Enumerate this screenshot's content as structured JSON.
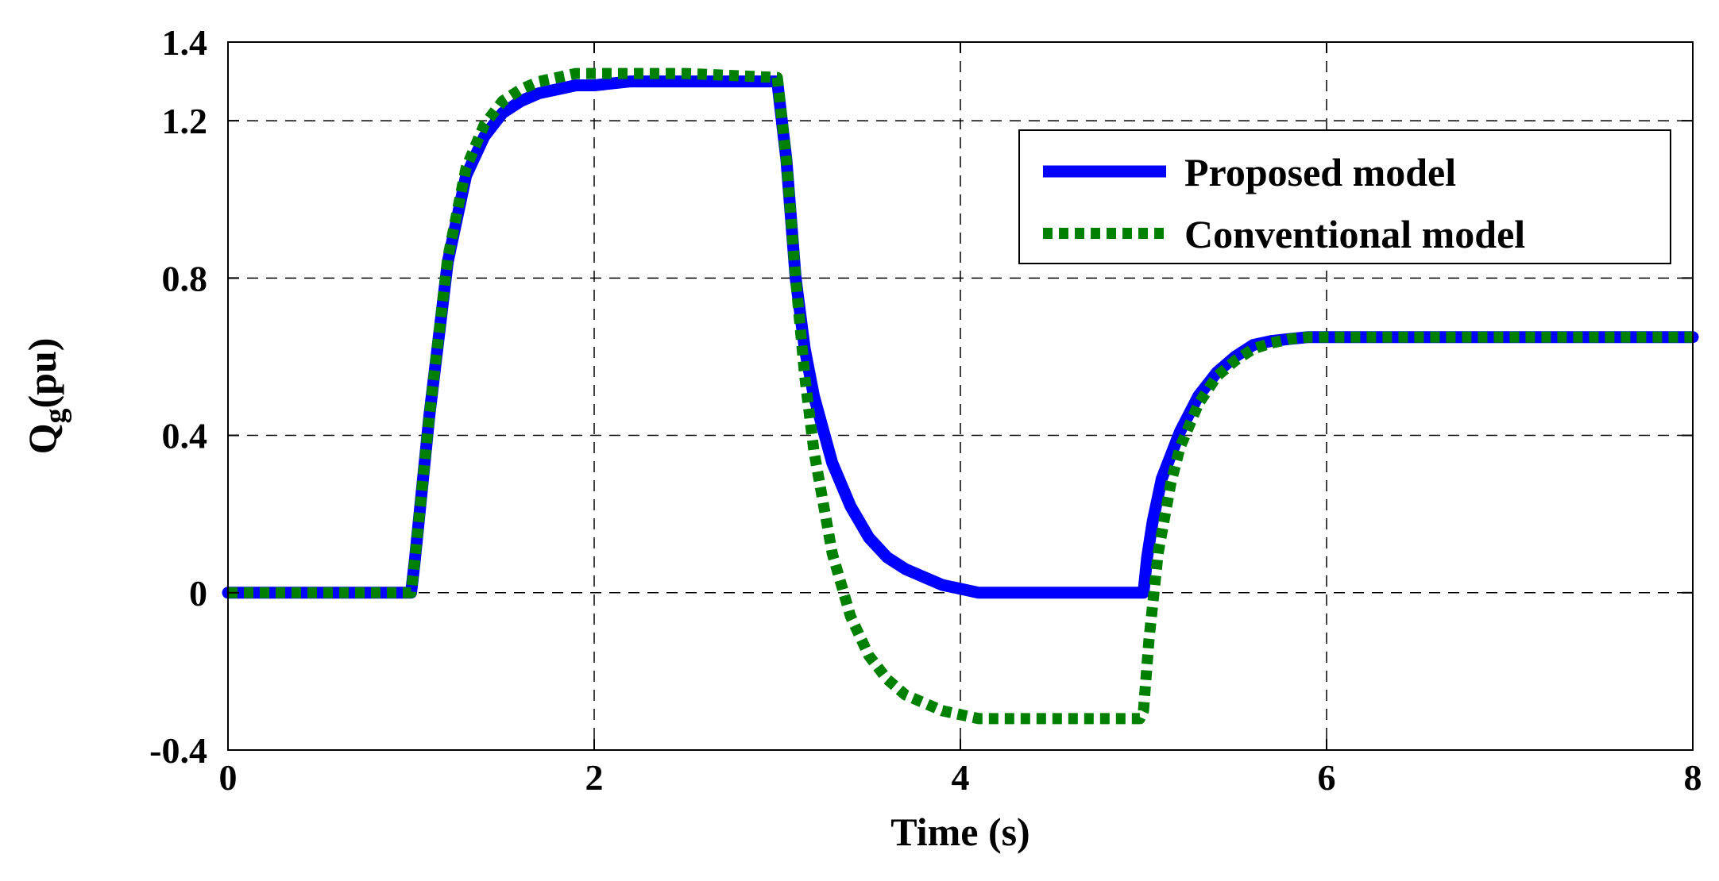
{
  "chart_data": {
    "type": "line",
    "title": "",
    "xlabel": "Time (s)",
    "ylabel_main": "Q",
    "ylabel_sub": "g",
    "ylabel_unit": "(pu)",
    "xlim": [
      0,
      8
    ],
    "ylim": [
      -0.4,
      1.4
    ],
    "x_ticks": [
      0,
      2,
      4,
      6,
      8
    ],
    "x_tick_labels": [
      "0",
      "2",
      "4",
      "6",
      "8"
    ],
    "y_ticks": [
      -0.4,
      0,
      0.4,
      0.8,
      1.2,
      1.4
    ],
    "y_tick_labels": [
      "-0.4",
      "0",
      "0.4",
      "0.8",
      "1.2",
      "1.4"
    ],
    "grid": true,
    "legend_position": "top-right",
    "series": [
      {
        "name": "Proposed model",
        "color": "#0000ff",
        "style": "solid",
        "x": [
          0,
          1.0,
          1.02,
          1.1,
          1.2,
          1.3,
          1.4,
          1.5,
          1.6,
          1.7,
          1.8,
          1.9,
          2.0,
          2.2,
          2.5,
          3.0,
          3.05,
          3.1,
          3.15,
          3.2,
          3.3,
          3.4,
          3.5,
          3.6,
          3.7,
          3.8,
          3.9,
          4.0,
          4.1,
          4.3,
          4.6,
          5.0,
          5.02,
          5.05,
          5.1,
          5.2,
          5.3,
          5.4,
          5.5,
          5.6,
          5.7,
          5.8,
          5.9,
          6.0,
          7.0,
          8.0
        ],
        "y": [
          0,
          0,
          0.08,
          0.45,
          0.84,
          1.06,
          1.16,
          1.22,
          1.25,
          1.27,
          1.28,
          1.29,
          1.29,
          1.3,
          1.3,
          1.3,
          1.1,
          0.8,
          0.62,
          0.5,
          0.33,
          0.22,
          0.14,
          0.09,
          0.06,
          0.04,
          0.02,
          0.01,
          0.0,
          0.0,
          0.0,
          0.0,
          0.09,
          0.18,
          0.29,
          0.41,
          0.5,
          0.56,
          0.6,
          0.63,
          0.64,
          0.645,
          0.65,
          0.65,
          0.65,
          0.65
        ]
      },
      {
        "name": "Conventional model",
        "color": "#008000",
        "style": "dotted",
        "x": [
          0,
          1.0,
          1.02,
          1.1,
          1.2,
          1.3,
          1.4,
          1.5,
          1.6,
          1.7,
          1.8,
          1.9,
          2.0,
          2.2,
          2.5,
          3.0,
          3.05,
          3.1,
          3.15,
          3.2,
          3.3,
          3.4,
          3.5,
          3.6,
          3.7,
          3.8,
          3.9,
          4.0,
          4.1,
          4.3,
          4.6,
          4.98,
          5.0,
          5.03,
          5.08,
          5.15,
          5.2,
          5.3,
          5.4,
          5.5,
          5.6,
          5.7,
          5.8,
          5.9,
          6.0,
          7.0,
          8.0
        ],
        "y": [
          0,
          0,
          0.08,
          0.45,
          0.85,
          1.08,
          1.19,
          1.25,
          1.28,
          1.3,
          1.31,
          1.32,
          1.32,
          1.32,
          1.32,
          1.31,
          1.1,
          0.8,
          0.55,
          0.36,
          0.1,
          -0.06,
          -0.16,
          -0.22,
          -0.26,
          -0.28,
          -0.3,
          -0.31,
          -0.32,
          -0.32,
          -0.32,
          -0.32,
          -0.3,
          -0.12,
          0.1,
          0.28,
          0.37,
          0.48,
          0.55,
          0.59,
          0.62,
          0.635,
          0.645,
          0.65,
          0.65,
          0.65,
          0.65
        ]
      }
    ]
  }
}
